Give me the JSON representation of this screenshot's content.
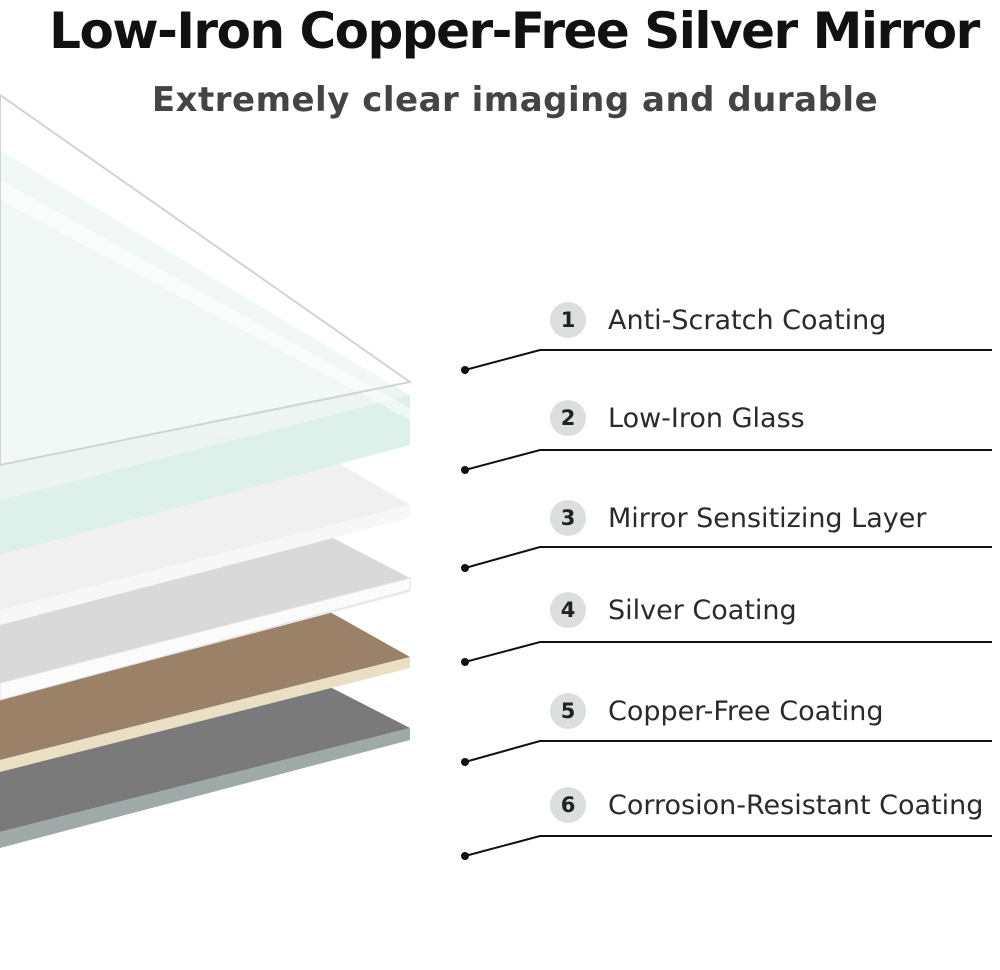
{
  "title": "Low-Iron Copper-Free Silver Mirror",
  "subtitle": "Extremely clear imaging and durable",
  "layers": [
    {
      "number": "1",
      "label": "Anti-Scratch Coating"
    },
    {
      "number": "2",
      "label": "Low-Iron Glass"
    },
    {
      "number": "3",
      "label": "Mirror Sensitizing Layer"
    },
    {
      "number": "4",
      "label": "Silver Coating"
    },
    {
      "number": "5",
      "label": "Copper-Free Coating"
    },
    {
      "number": "6",
      "label": "Corrosion-Resistant Coating"
    }
  ],
  "colors": {
    "glass": "#dff0ea",
    "sensitizing": "#f1f1f1",
    "silver": "#d8d8d8",
    "copper": "#9a8168",
    "copper_edge": "#eadfc4",
    "corrosion": "#7a7a7a",
    "corrosion_edge": "#9fa9a7"
  }
}
